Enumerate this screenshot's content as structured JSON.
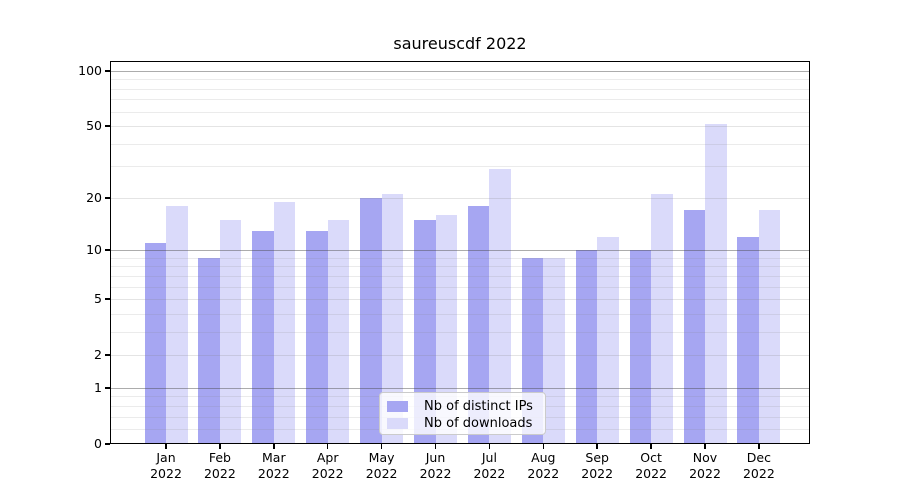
{
  "title": "saureuscdf 2022",
  "chart_data": {
    "type": "bar",
    "title": "saureuscdf 2022",
    "categories": [
      "Jan",
      "Feb",
      "Mar",
      "Apr",
      "May",
      "Jun",
      "Jul",
      "Aug",
      "Sep",
      "Oct",
      "Nov",
      "Dec"
    ],
    "x_year_label": "2022",
    "series": [
      {
        "name": "Nb of distinct IPs",
        "color": "#a6a6f2",
        "values": [
          11,
          9,
          13,
          13,
          20,
          15,
          18,
          9,
          10,
          10,
          17,
          12
        ]
      },
      {
        "name": "Nb of downloads",
        "color": "#dadafa",
        "values": [
          18,
          15,
          19,
          15,
          21,
          16,
          29,
          9,
          12,
          21,
          51,
          17
        ]
      }
    ],
    "xlabel": "",
    "ylabel": "",
    "yscale": "log1p",
    "ylim": [
      0,
      113
    ],
    "y_ticks": [
      0,
      1,
      2,
      5,
      10,
      20,
      50,
      100
    ],
    "y_major_gridlines": [
      1,
      10,
      100
    ],
    "y_labeled_gridlines": [
      2,
      5,
      20,
      50
    ],
    "y_minor_gridlines": [
      0.2,
      0.4,
      0.6,
      0.8,
      3,
      4,
      6,
      7,
      8,
      9,
      30,
      40,
      60,
      70,
      80,
      90
    ],
    "grid": true,
    "legend_position": "lower center"
  }
}
